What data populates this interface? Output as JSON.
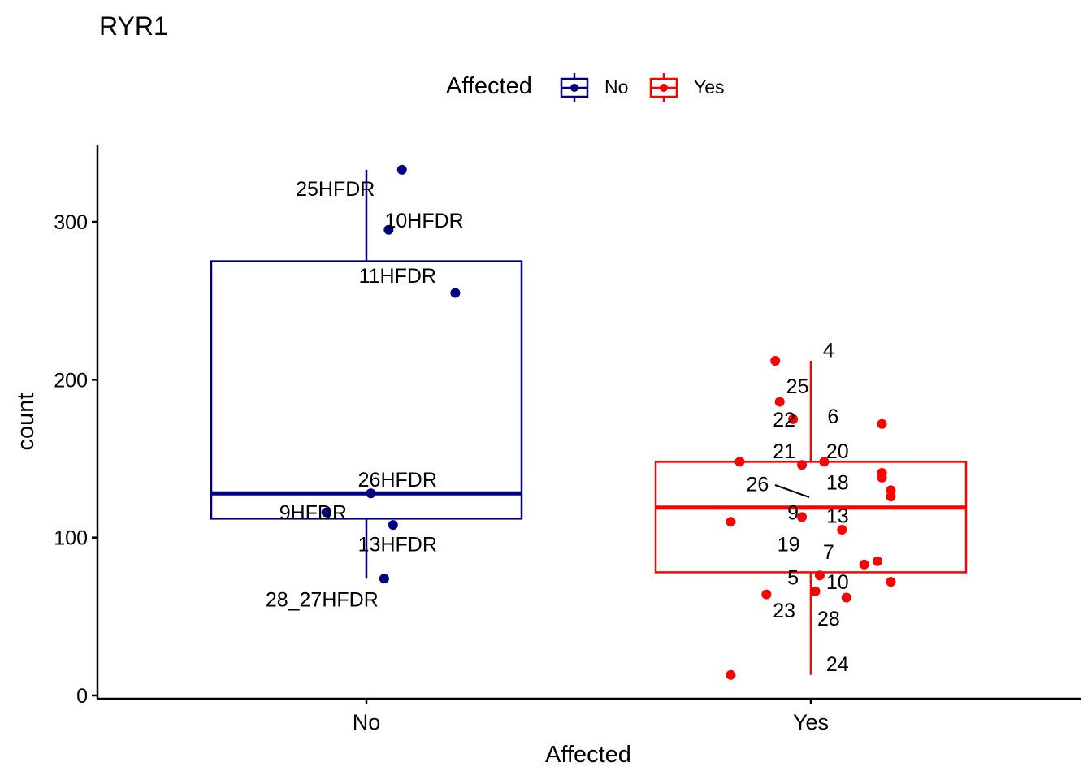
{
  "title": "RYR1",
  "legend": {
    "title": "Affected",
    "items": [
      {
        "label": "No",
        "color": "#000080"
      },
      {
        "label": "Yes",
        "color": "#ff0000"
      }
    ]
  },
  "chart_data": {
    "type": "box",
    "title": "RYR1",
    "xlabel": "Affected",
    "ylabel": "count",
    "categories": [
      "No",
      "Yes"
    ],
    "ylim": [
      0,
      350
    ],
    "yticks": [
      0,
      100,
      200,
      300
    ],
    "grid": false,
    "legend_position": "top",
    "series": [
      {
        "name": "No",
        "color": "#000080",
        "box": {
          "whisker_low": 74,
          "q1": 112,
          "median": 128,
          "q3": 275,
          "whisker_high": 333
        },
        "points": [
          {
            "x": 0.08,
            "y": 333,
            "label": "25HFDR",
            "lx": -0.07,
            "ly": 321
          },
          {
            "x": 0.05,
            "y": 295,
            "label": "10HFDR",
            "lx": 0.13,
            "ly": 301
          },
          {
            "x": 0.2,
            "y": 255,
            "label": "11HFDR",
            "lx": 0.07,
            "ly": 266
          },
          {
            "x": 0.01,
            "y": 128,
            "label": "26HFDR",
            "lx": 0.07,
            "ly": 137
          },
          {
            "x": -0.09,
            "y": 116,
            "label": "9HFDR",
            "lx": -0.12,
            "ly": 116
          },
          {
            "x": 0.06,
            "y": 108,
            "label": "13HFDR",
            "lx": 0.07,
            "ly": 96
          },
          {
            "x": 0.04,
            "y": 74,
            "label": "28_27HFDR",
            "lx": -0.1,
            "ly": 61
          }
        ]
      },
      {
        "name": "Yes",
        "color": "#ff0000",
        "box": {
          "whisker_low": 13,
          "q1": 78,
          "median": 119,
          "q3": 148,
          "whisker_high": 212
        },
        "points": [
          {
            "x": -0.08,
            "y": 212,
            "label": "4",
            "lx": 0.04,
            "ly": 219
          },
          {
            "x": -0.07,
            "y": 186,
            "label": "25",
            "lx": -0.03,
            "ly": 196
          },
          {
            "x": -0.04,
            "y": 175,
            "label": "22",
            "lx": -0.06,
            "ly": 175
          },
          {
            "x": 0.16,
            "y": 172,
            "label": "6",
            "lx": 0.05,
            "ly": 177
          },
          {
            "x": -0.16,
            "y": 148,
            "label": "21",
            "lx": -0.06,
            "ly": 155
          },
          {
            "x": 0.03,
            "y": 148,
            "label": "20",
            "lx": 0.06,
            "ly": 155
          },
          {
            "x": -0.02,
            "y": 146,
            "label": "18",
            "lx": 0.06,
            "ly": 135
          },
          {
            "x": 0.16,
            "y": 141,
            "label": "26",
            "lx": -0.12,
            "ly": 134
          },
          {
            "x": 0.16,
            "y": 138,
            "label": "9",
            "lx": -0.04,
            "ly": 116
          },
          {
            "x": 0.18,
            "y": 130,
            "label": "13",
            "lx": 0.06,
            "ly": 114
          },
          {
            "x": 0.18,
            "y": 126,
            "label": "19",
            "lx": -0.05,
            "ly": 96
          },
          {
            "x": -0.18,
            "y": 110,
            "label": "7",
            "lx": 0.04,
            "ly": 91
          },
          {
            "x": -0.02,
            "y": 113,
            "label": "5",
            "lx": -0.04,
            "ly": 75
          },
          {
            "x": 0.07,
            "y": 105,
            "label": "10",
            "lx": 0.06,
            "ly": 72
          },
          {
            "x": 0.15,
            "y": 85,
            "label": "23",
            "lx": -0.06,
            "ly": 54
          },
          {
            "x": 0.12,
            "y": 83,
            "label": "28",
            "lx": 0.04,
            "ly": 49
          },
          {
            "x": 0.18,
            "y": 72,
            "label": "24",
            "lx": 0.06,
            "ly": 20
          },
          {
            "x": 0.02,
            "y": 76,
            "label": "",
            "lx": 0,
            "ly": 0
          },
          {
            "x": -0.1,
            "y": 64,
            "label": "",
            "lx": 0,
            "ly": 0
          },
          {
            "x": 0.01,
            "y": 66,
            "label": "",
            "lx": 0,
            "ly": 0
          },
          {
            "x": 0.08,
            "y": 62,
            "label": "",
            "lx": 0,
            "ly": 0
          },
          {
            "x": -0.18,
            "y": 13,
            "label": "",
            "lx": 0,
            "ly": 0
          }
        ]
      }
    ]
  }
}
